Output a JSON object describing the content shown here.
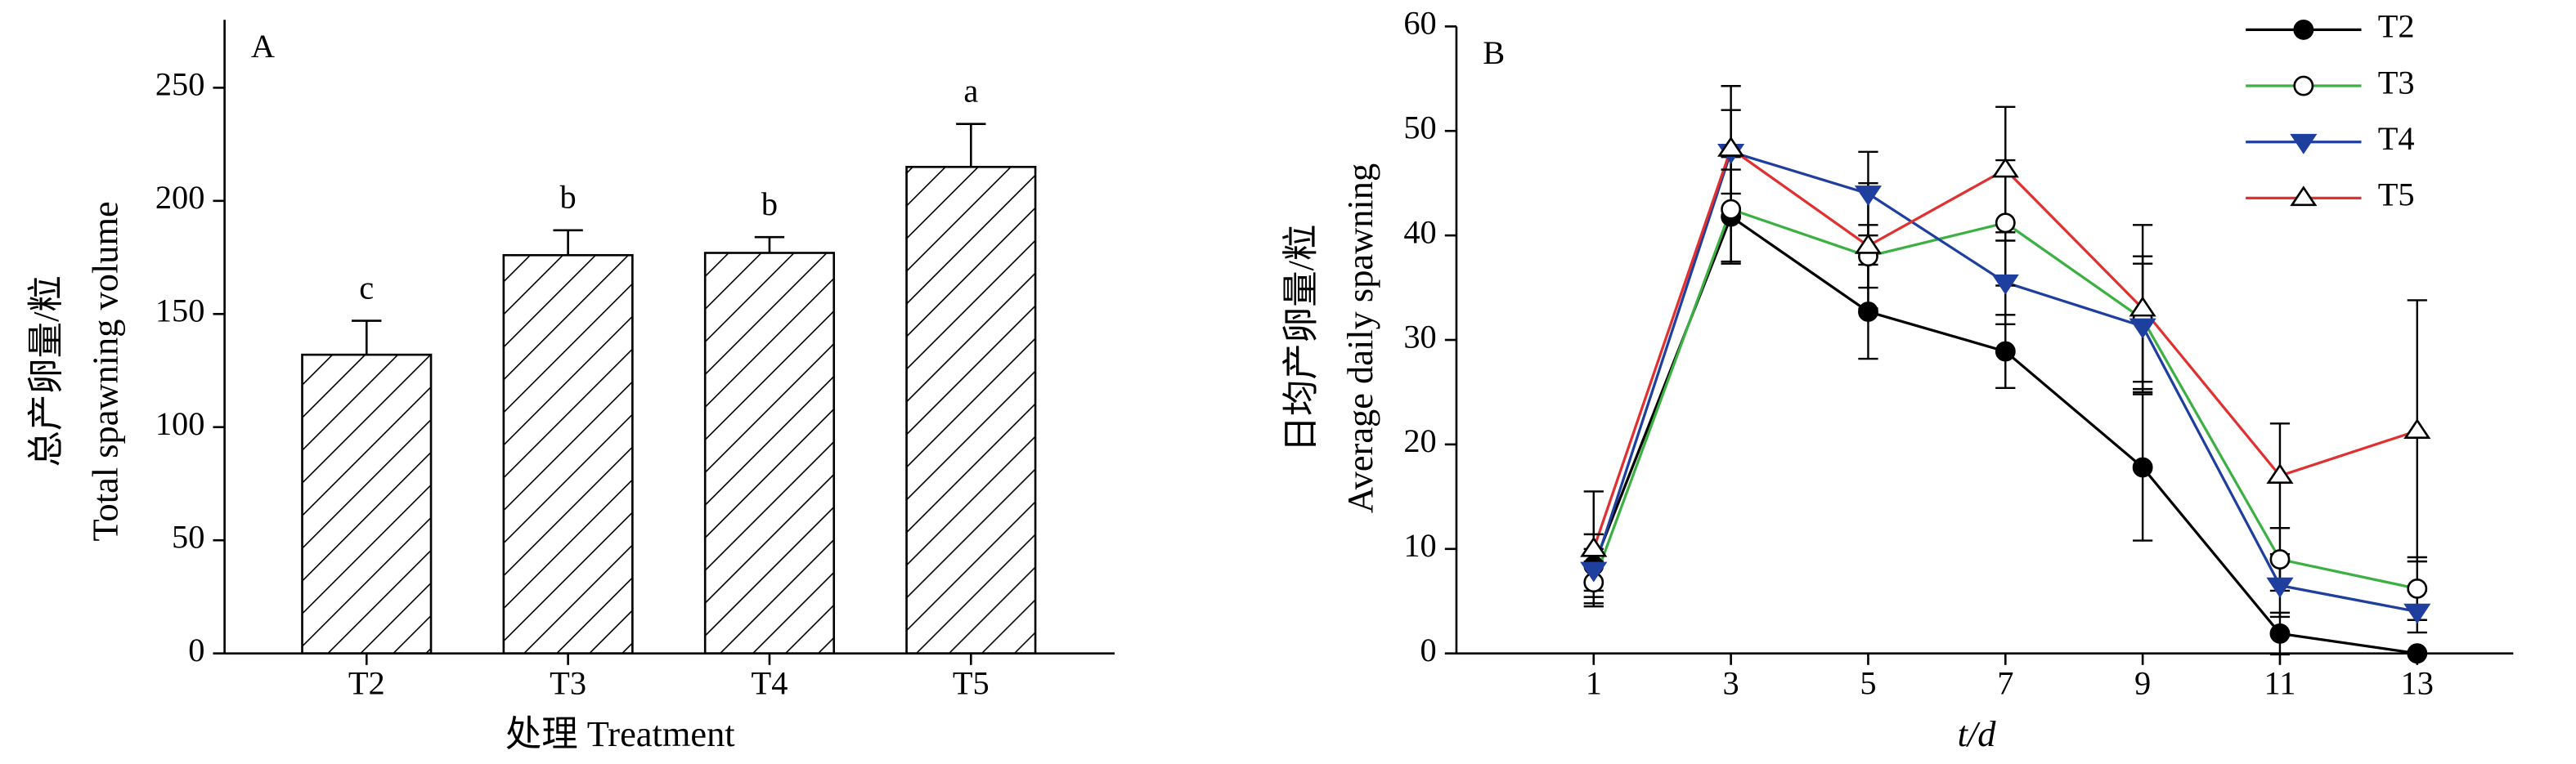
{
  "chart_data": [
    {
      "type": "bar",
      "panel_label": "A",
      "y_label": [
        "总产卵量/粒",
        "Total spawning volume"
      ],
      "x_label": "处理 Treatment",
      "categories": [
        "T2",
        "T3",
        "T4",
        "T5"
      ],
      "values": [
        132,
        176,
        177,
        215
      ],
      "errors": [
        15,
        11,
        7,
        19
      ],
      "significance_labels": [
        "c",
        "b",
        "b",
        "a"
      ],
      "ylim": [
        0,
        280
      ],
      "yticks": [
        0,
        50,
        100,
        150,
        200,
        250
      ],
      "color": "#000000",
      "hatch": "diagonal"
    },
    {
      "type": "line",
      "panel_label": "B",
      "y_label": [
        "日均产卵量/粒",
        "Average daily spawning"
      ],
      "x_label": "t/d",
      "x": [
        1,
        3,
        5,
        7,
        9,
        11,
        13
      ],
      "xlim": [
        -1,
        14.4
      ],
      "xticks": [
        1,
        3,
        5,
        7,
        9,
        11,
        13
      ],
      "ylim": [
        0,
        60
      ],
      "yticks": [
        0,
        10,
        20,
        30,
        40,
        50,
        60
      ],
      "series": [
        {
          "name": "T2",
          "color": "#000000",
          "marker": "circle-filled",
          "values": [
            8.4,
            41.8,
            32.7,
            28.9,
            17.8,
            1.9,
            0
          ],
          "errors": [
            3,
            4.5,
            4.5,
            3.5,
            7,
            2,
            0
          ]
        },
        {
          "name": "T3",
          "color": "#3cb043",
          "marker": "circle-open",
          "values": [
            6.8,
            42.5,
            38,
            41.2,
            32,
            9,
            6.2
          ],
          "errors": [
            2,
            5,
            3,
            6,
            6,
            3,
            3
          ]
        },
        {
          "name": "T4",
          "color": "#1f3f9f",
          "marker": "triangle-down-filled",
          "values": [
            8,
            48,
            44,
            35.5,
            31.3,
            6.5,
            4
          ],
          "errors": [
            2,
            4,
            4,
            4,
            6,
            3,
            2
          ]
        },
        {
          "name": "T5",
          "color": "#e03030",
          "marker": "triangle-up-open",
          "values": [
            10,
            48.3,
            39,
            46.3,
            33,
            17,
            21.3
          ],
          "errors": [
            5.5,
            6,
            6,
            6,
            8,
            5,
            12.5
          ]
        }
      ],
      "legend": "upper right"
    }
  ]
}
